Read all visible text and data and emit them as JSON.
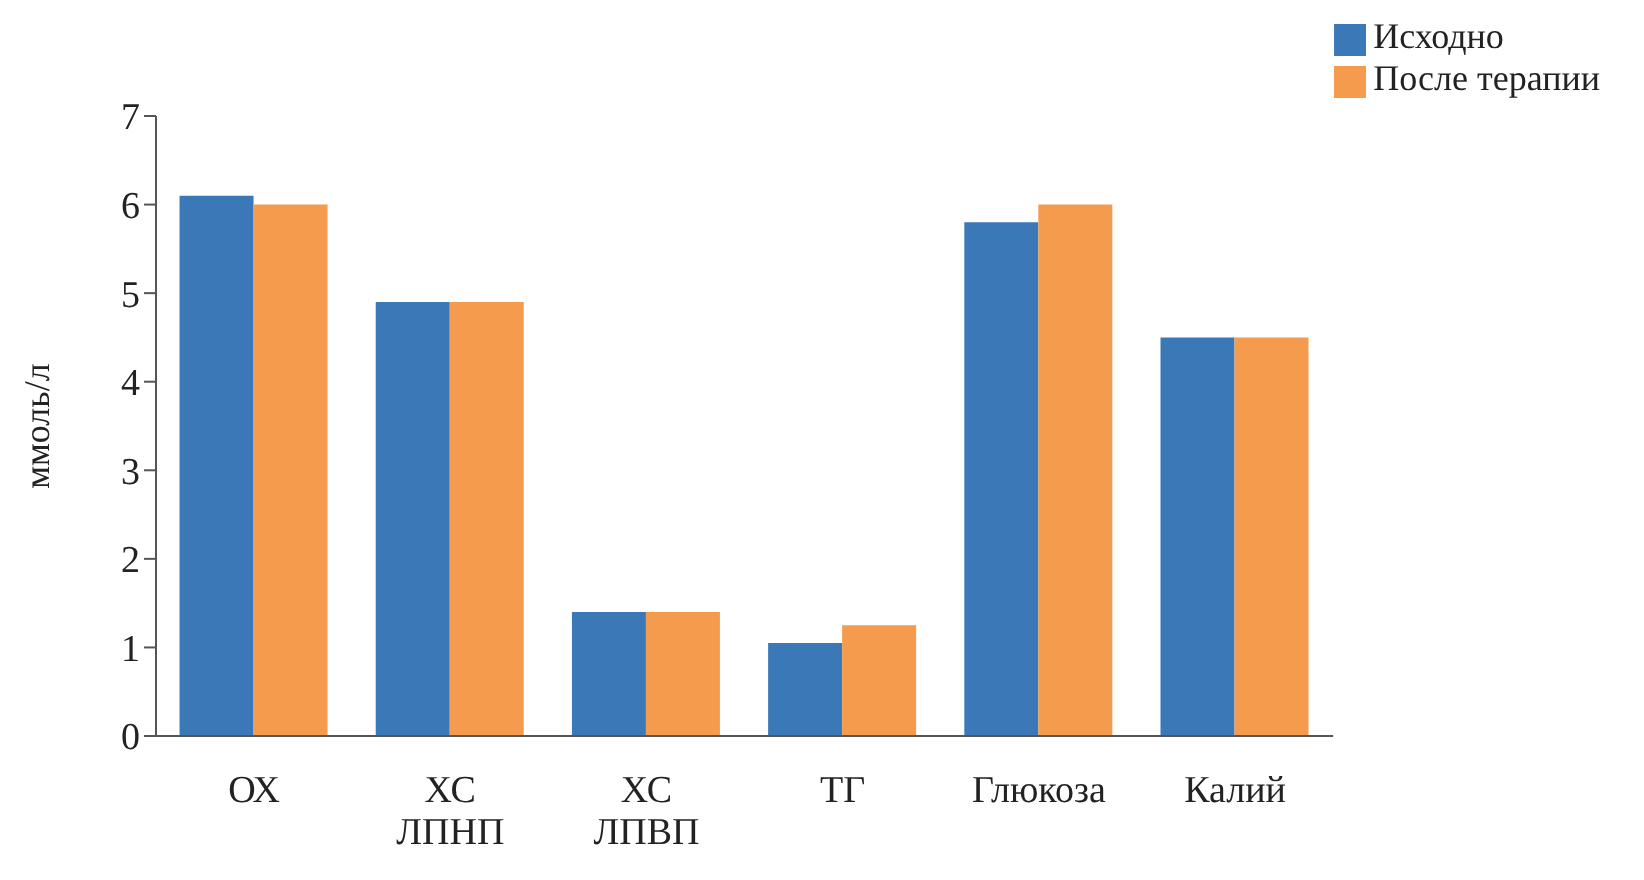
{
  "chart_data": {
    "type": "bar",
    "ylabel": "ммоль/л",
    "categories": [
      "ОХ",
      "ХС\nЛПНП",
      "ХС\nЛПВП",
      "ТГ",
      "Глюкоза",
      "Калий"
    ],
    "series": [
      {
        "name": "Исходно",
        "color": "#3a78b8",
        "values": [
          6.1,
          4.9,
          1.4,
          1.05,
          5.8,
          4.5
        ]
      },
      {
        "name": "После терапии",
        "color": "#f59b4e",
        "values": [
          6.0,
          4.9,
          1.4,
          1.25,
          6.0,
          4.5
        ]
      }
    ],
    "ylim": [
      0,
      7
    ],
    "yticks": [
      0,
      1,
      2,
      3,
      4,
      5,
      6,
      7
    ],
    "grid": false,
    "legend": "top right"
  }
}
